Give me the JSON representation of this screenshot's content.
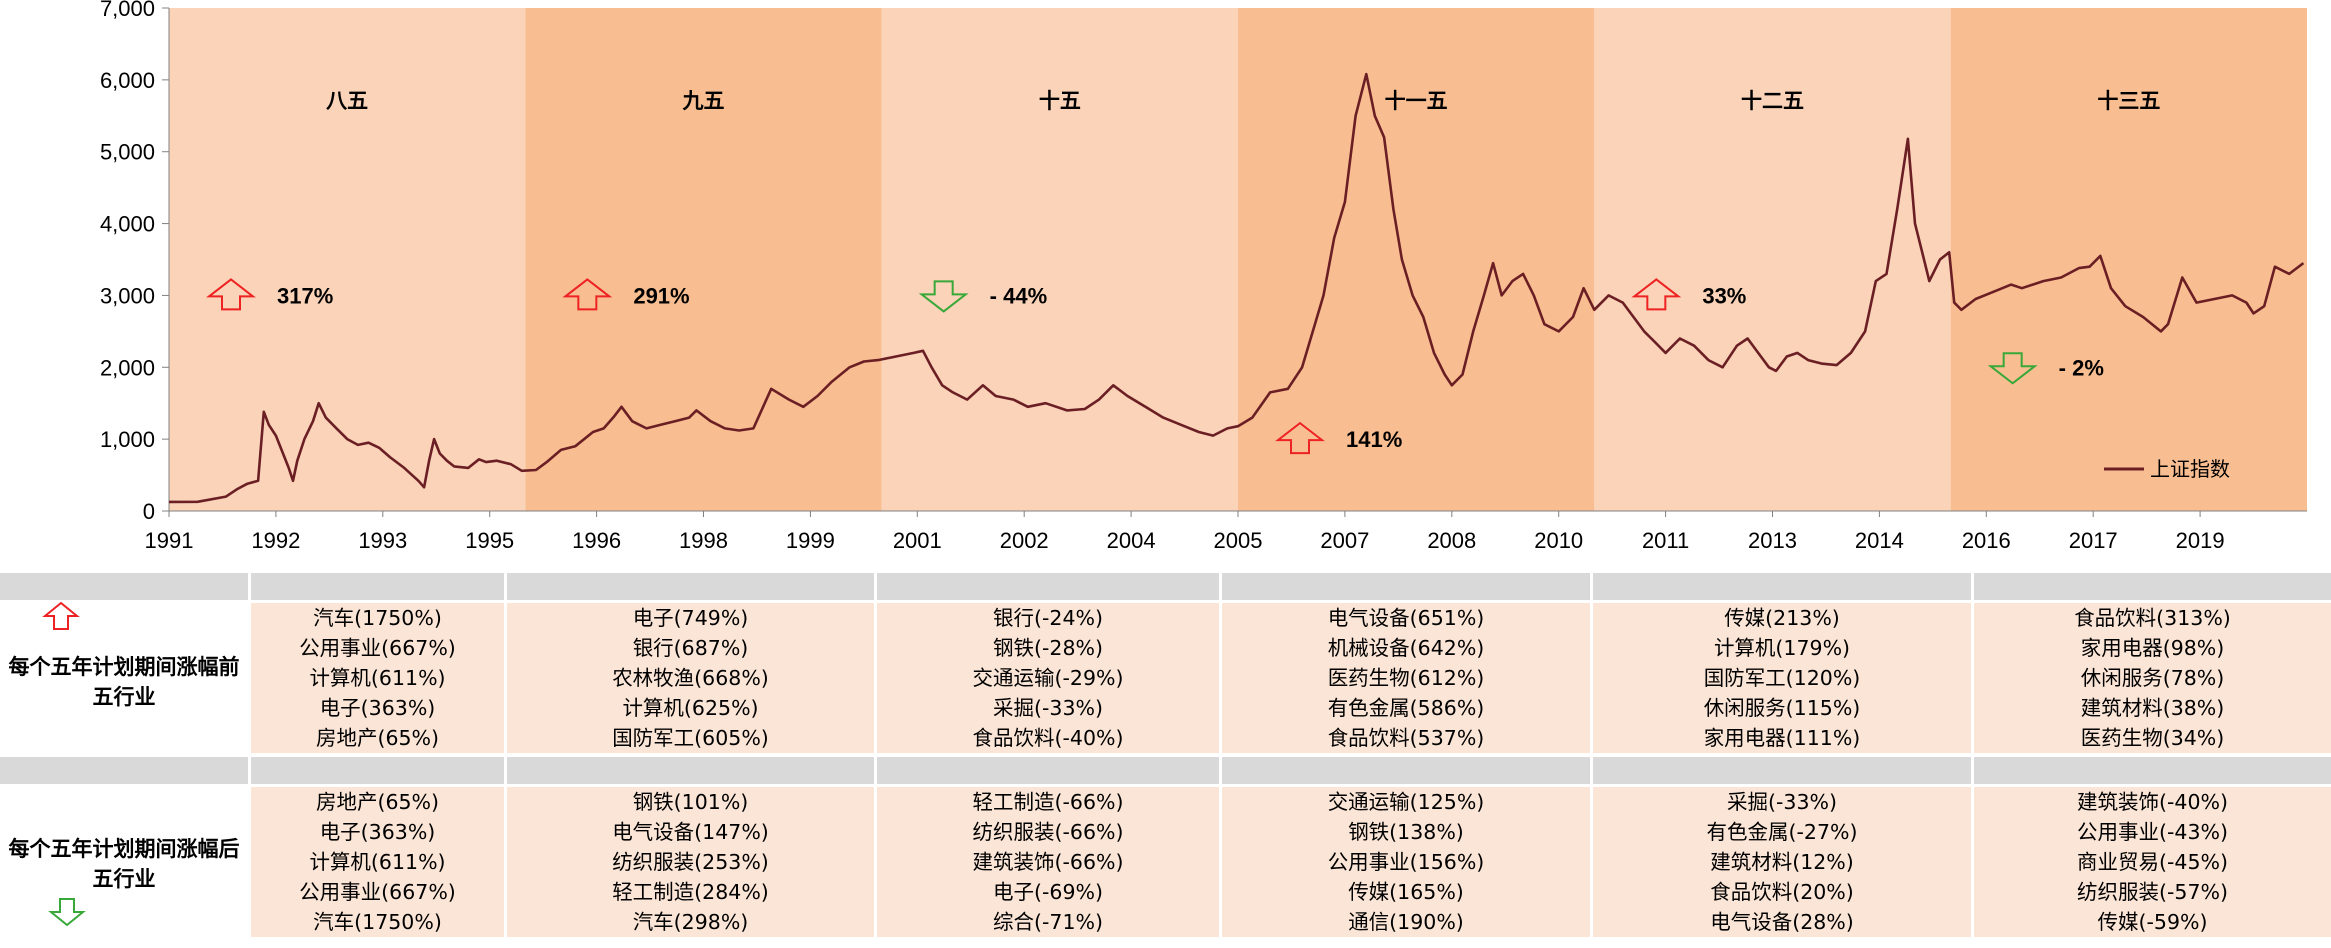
{
  "chart_data": {
    "type": "line",
    "series": [
      {
        "name": "上证指数",
        "color": "#6b1f24",
        "points": [
          [
            1991.0,
            127
          ],
          [
            1991.4,
            128
          ],
          [
            1991.8,
            200
          ],
          [
            1991.95,
            300
          ],
          [
            1992.1,
            380
          ],
          [
            1992.25,
            420
          ],
          [
            1992.33,
            1380
          ],
          [
            1992.4,
            1200
          ],
          [
            1992.5,
            1050
          ],
          [
            1992.6,
            800
          ],
          [
            1992.68,
            600
          ],
          [
            1992.74,
            420
          ],
          [
            1992.8,
            700
          ],
          [
            1992.9,
            1000
          ],
          [
            1993.02,
            1250
          ],
          [
            1993.1,
            1500
          ],
          [
            1993.2,
            1300
          ],
          [
            1993.35,
            1150
          ],
          [
            1993.5,
            1000
          ],
          [
            1993.65,
            920
          ],
          [
            1993.8,
            950
          ],
          [
            1993.95,
            880
          ],
          [
            1994.1,
            750
          ],
          [
            1994.3,
            600
          ],
          [
            1994.5,
            420
          ],
          [
            1994.58,
            330
          ],
          [
            1994.65,
            700
          ],
          [
            1994.72,
            1000
          ],
          [
            1994.8,
            800
          ],
          [
            1994.9,
            700
          ],
          [
            1995.0,
            620
          ],
          [
            1995.2,
            600
          ],
          [
            1995.35,
            720
          ],
          [
            1995.45,
            680
          ],
          [
            1995.6,
            700
          ],
          [
            1995.8,
            650
          ],
          [
            1995.95,
            560
          ],
          [
            1996.15,
            570
          ],
          [
            1996.3,
            680
          ],
          [
            1996.5,
            850
          ],
          [
            1996.7,
            900
          ],
          [
            1996.95,
            1100
          ],
          [
            1997.1,
            1150
          ],
          [
            1997.25,
            1320
          ],
          [
            1997.35,
            1450
          ],
          [
            1997.5,
            1250
          ],
          [
            1997.7,
            1150
          ],
          [
            1997.9,
            1200
          ],
          [
            1998.1,
            1250
          ],
          [
            1998.3,
            1300
          ],
          [
            1998.4,
            1400
          ],
          [
            1998.6,
            1250
          ],
          [
            1998.8,
            1150
          ],
          [
            1999.0,
            1120
          ],
          [
            1999.2,
            1150
          ],
          [
            1999.45,
            1700
          ],
          [
            1999.7,
            1550
          ],
          [
            1999.9,
            1450
          ],
          [
            2000.1,
            1600
          ],
          [
            2000.3,
            1800
          ],
          [
            2000.55,
            2000
          ],
          [
            2000.75,
            2080
          ],
          [
            2000.95,
            2100
          ],
          [
            2001.2,
            2150
          ],
          [
            2001.45,
            2200
          ],
          [
            2001.58,
            2230
          ],
          [
            2001.7,
            2000
          ],
          [
            2001.85,
            1750
          ],
          [
            2002.0,
            1650
          ],
          [
            2002.2,
            1550
          ],
          [
            2002.42,
            1750
          ],
          [
            2002.6,
            1600
          ],
          [
            2002.85,
            1550
          ],
          [
            2003.05,
            1450
          ],
          [
            2003.3,
            1500
          ],
          [
            2003.6,
            1400
          ],
          [
            2003.85,
            1420
          ],
          [
            2004.05,
            1550
          ],
          [
            2004.25,
            1750
          ],
          [
            2004.45,
            1600
          ],
          [
            2004.7,
            1450
          ],
          [
            2004.95,
            1300
          ],
          [
            2005.2,
            1200
          ],
          [
            2005.45,
            1100
          ],
          [
            2005.65,
            1050
          ],
          [
            2005.85,
            1150
          ],
          [
            2006.0,
            1180
          ],
          [
            2006.2,
            1300
          ],
          [
            2006.45,
            1650
          ],
          [
            2006.7,
            1700
          ],
          [
            2006.9,
            2000
          ],
          [
            2007.05,
            2500
          ],
          [
            2007.2,
            3000
          ],
          [
            2007.35,
            3800
          ],
          [
            2007.5,
            4300
          ],
          [
            2007.65,
            5500
          ],
          [
            2007.8,
            6080
          ],
          [
            2007.92,
            5500
          ],
          [
            2008.05,
            5200
          ],
          [
            2008.18,
            4200
          ],
          [
            2008.3,
            3500
          ],
          [
            2008.45,
            3000
          ],
          [
            2008.6,
            2700
          ],
          [
            2008.75,
            2200
          ],
          [
            2008.9,
            1900
          ],
          [
            2009.0,
            1750
          ],
          [
            2009.15,
            1900
          ],
          [
            2009.3,
            2500
          ],
          [
            2009.45,
            3000
          ],
          [
            2009.58,
            3450
          ],
          [
            2009.7,
            3000
          ],
          [
            2009.85,
            3200
          ],
          [
            2010.0,
            3300
          ],
          [
            2010.15,
            3000
          ],
          [
            2010.3,
            2600
          ],
          [
            2010.5,
            2500
          ],
          [
            2010.7,
            2700
          ],
          [
            2010.85,
            3100
          ],
          [
            2011.0,
            2800
          ],
          [
            2011.2,
            3000
          ],
          [
            2011.4,
            2900
          ],
          [
            2011.55,
            2700
          ],
          [
            2011.7,
            2500
          ],
          [
            2011.85,
            2350
          ],
          [
            2012.0,
            2200
          ],
          [
            2012.2,
            2400
          ],
          [
            2012.4,
            2300
          ],
          [
            2012.6,
            2100
          ],
          [
            2012.8,
            2000
          ],
          [
            2013.0,
            2300
          ],
          [
            2013.15,
            2400
          ],
          [
            2013.3,
            2200
          ],
          [
            2013.45,
            2000
          ],
          [
            2013.55,
            1950
          ],
          [
            2013.7,
            2150
          ],
          [
            2013.85,
            2200
          ],
          [
            2014.0,
            2100
          ],
          [
            2014.2,
            2050
          ],
          [
            2014.4,
            2030
          ],
          [
            2014.6,
            2200
          ],
          [
            2014.8,
            2500
          ],
          [
            2014.95,
            3200
          ],
          [
            2015.1,
            3300
          ],
          [
            2015.25,
            4200
          ],
          [
            2015.4,
            5180
          ],
          [
            2015.5,
            4000
          ],
          [
            2015.6,
            3600
          ],
          [
            2015.7,
            3200
          ],
          [
            2015.85,
            3500
          ],
          [
            2015.98,
            3600
          ],
          [
            2016.05,
            2900
          ],
          [
            2016.15,
            2800
          ],
          [
            2016.35,
            2950
          ],
          [
            2016.6,
            3050
          ],
          [
            2016.85,
            3150
          ],
          [
            2017.0,
            3100
          ],
          [
            2017.3,
            3200
          ],
          [
            2017.55,
            3250
          ],
          [
            2017.8,
            3380
          ],
          [
            2017.95,
            3400
          ],
          [
            2018.1,
            3550
          ],
          [
            2018.25,
            3100
          ],
          [
            2018.45,
            2850
          ],
          [
            2018.7,
            2700
          ],
          [
            2018.95,
            2500
          ],
          [
            2019.05,
            2600
          ],
          [
            2019.25,
            3250
          ],
          [
            2019.45,
            2900
          ],
          [
            2019.7,
            2950
          ],
          [
            2019.95,
            3000
          ],
          [
            2020.15,
            2900
          ],
          [
            2020.25,
            2750
          ],
          [
            2020.4,
            2850
          ],
          [
            2020.55,
            3400
          ],
          [
            2020.75,
            3300
          ],
          [
            2020.95,
            3450
          ]
        ]
      }
    ],
    "xlim": [
      1991.0,
      2021.0
    ],
    "x_ticks": [
      "1991",
      "1992",
      "1993",
      "1995",
      "1996",
      "1998",
      "1999",
      "2001",
      "2002",
      "2004",
      "2005",
      "2007",
      "2008",
      "2010",
      "2011",
      "2013",
      "2014",
      "2016",
      "2017",
      "2019"
    ],
    "ylim": [
      0,
      7000
    ],
    "y_ticks": [
      "0",
      "1,000",
      "2,000",
      "3,000",
      "4,000",
      "5,000",
      "6,000",
      "7,000"
    ],
    "grid": false,
    "legend": "bottom-right",
    "periods": [
      {
        "label": "八五",
        "start": 1991.0,
        "end": 1996.0,
        "color": "#fad3b8",
        "change": "317%",
        "direction": "up",
        "change_y": 3000
      },
      {
        "label": "九五",
        "start": 1996.0,
        "end": 2001.0,
        "color": "#f8be91",
        "change": "291%",
        "direction": "up",
        "change_y": 3000
      },
      {
        "label": "十五",
        "start": 2001.0,
        "end": 2006.0,
        "color": "#fad3b8",
        "change": "- 44%",
        "direction": "down",
        "change_y": 3000
      },
      {
        "label": "十一五",
        "start": 2006.0,
        "end": 2011.0,
        "color": "#f8be91",
        "change": "141%",
        "direction": "up",
        "change_y": 1000
      },
      {
        "label": "十二五",
        "start": 2011.0,
        "end": 2016.0,
        "color": "#fad3b8",
        "change": "33%",
        "direction": "up",
        "change_y": 3000
      },
      {
        "label": "十三五",
        "start": 2016.0,
        "end": 2021.0,
        "color": "#f8be91",
        "change": "- 2%",
        "direction": "down",
        "change_y": 2000
      }
    ]
  },
  "table": {
    "top_label": "每个五年计划期间涨幅前五行业",
    "bottom_label": "每个五年计划期间涨幅后五行业",
    "top_rows": [
      [
        "汽车(1750%)",
        "电子(749%)",
        "银行(-24%)",
        "电气设备(651%)",
        "传媒(213%)",
        "食品饮料(313%)"
      ],
      [
        "公用事业(667%)",
        "银行(687%)",
        "钢铁(-28%)",
        "机械设备(642%)",
        "计算机(179%)",
        "家用电器(98%)"
      ],
      [
        "计算机(611%)",
        "农林牧渔(668%)",
        "交通运输(-29%)",
        "医药生物(612%)",
        "国防军工(120%)",
        "休闲服务(78%)"
      ],
      [
        "电子(363%)",
        "计算机(625%)",
        "采掘(-33%)",
        "有色金属(586%)",
        "休闲服务(115%)",
        "建筑材料(38%)"
      ],
      [
        "房地产(65%)",
        "国防军工(605%)",
        "食品饮料(-40%)",
        "食品饮料(537%)",
        "家用电器(111%)",
        "医药生物(34%)"
      ]
    ],
    "bottom_rows": [
      [
        "房地产(65%)",
        "钢铁(101%)",
        "轻工制造(-66%)",
        "交通运输(125%)",
        "采掘(-33%)",
        "建筑装饰(-40%)"
      ],
      [
        "电子(363%)",
        "电气设备(147%)",
        "纺织服装(-66%)",
        "钢铁(138%)",
        "有色金属(-27%)",
        "公用事业(-43%)"
      ],
      [
        "计算机(611%)",
        "纺织服装(253%)",
        "建筑装饰(-66%)",
        "公用事业(156%)",
        "建筑材料(12%)",
        "商业贸易(-45%)"
      ],
      [
        "公用事业(667%)",
        "轻工制造(284%)",
        "电子(-69%)",
        "传媒(165%)",
        "食品饮料(20%)",
        "纺织服装(-57%)"
      ],
      [
        "汽车(1750%)",
        "汽车(298%)",
        "综合(-71%)",
        "通信(190%)",
        "电气设备(28%)",
        "传媒(-59%)"
      ]
    ]
  },
  "colors": {
    "up_arrow": "#ee2222",
    "down_arrow": "#38a838",
    "cell_bg": "#fbe5d6",
    "header_strip": "#d9d9d9"
  }
}
